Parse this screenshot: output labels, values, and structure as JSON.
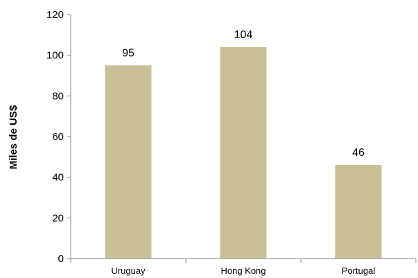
{
  "chart_data": {
    "type": "bar",
    "categories": [
      "Uruguay",
      "Hong Kong",
      "Portugal"
    ],
    "values": [
      95,
      104,
      46
    ],
    "data_labels": [
      "95",
      "104",
      "46"
    ],
    "ylabel": "Miles de US$",
    "xlabel": "",
    "ylim": [
      0,
      120
    ],
    "yticks": [
      0,
      20,
      40,
      60,
      80,
      100,
      120
    ],
    "grid": false,
    "legend": "none",
    "bar_color": "#c8bf96",
    "axis_color": "#888888"
  }
}
